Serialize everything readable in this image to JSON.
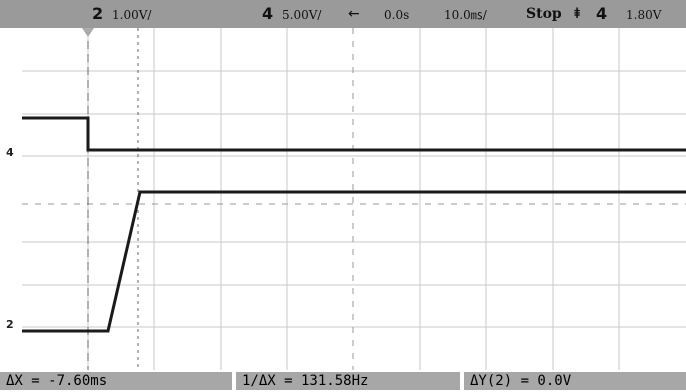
{
  "status": {
    "ch2_num": "2",
    "ch2_scale": "1.00V/",
    "ch4_num": "4",
    "ch4_scale": "5.00V/",
    "delay_arrow": "←",
    "delay": "0.0s",
    "timebase": "10.0㎳/",
    "run_state": "Stop",
    "trigger_icon": "⯒",
    "trigger_channel": "4",
    "trigger_level": "1.80V"
  },
  "markers": {
    "ch4": "4",
    "ch2": "2"
  },
  "measurements": {
    "delta_x": "ΔX = -7.60ms",
    "inv_delta_x": "1/ΔX = 131.58Hz",
    "delta_y": "ΔY(2) = 0.0V"
  }
}
